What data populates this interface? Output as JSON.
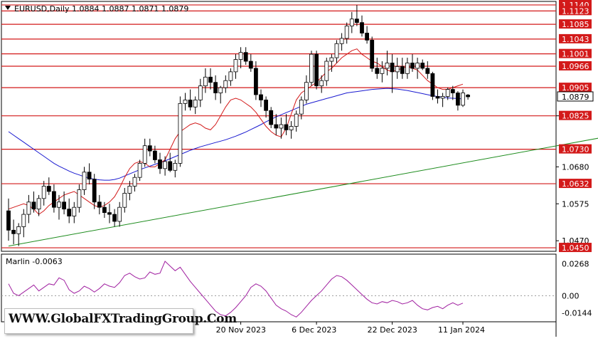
{
  "header": {
    "symbol_line": "EURUSD,Daily  1.0884 1.0887 1.0871 1.0879"
  },
  "indicator": {
    "label": "Marlin -0.0063",
    "axis_labels": [
      "0.0268",
      "0.00",
      "-0.0144"
    ]
  },
  "watermark": "WWW.GlobalFXTradingGroup.Com",
  "colors": {
    "background": "#ffffff",
    "panel_bg": "#f4f4f4",
    "level_line": "#d31a1a",
    "ma_fast": "#d31a1a",
    "ma_slow": "#1a1ad0",
    "trendline": "#1e8c1e",
    "oscillator": "#a020a0",
    "candle_up": "#ffffff",
    "candle_down": "#000000"
  },
  "chart_data": {
    "type": "candlestick",
    "symbol": "EURUSD",
    "timeframe": "Daily",
    "current_price": "1.0879",
    "ylim": [
      1.044,
      1.115
    ],
    "price_ticks": [
      "1.0825",
      "1.0680",
      "1.0575",
      "1.0470"
    ],
    "levels": [
      "1.1140",
      "1.1123",
      "1.1085",
      "1.1043",
      "1.1001",
      "1.0966",
      "1.0905",
      "1.0825",
      "1.0730",
      "1.0632",
      "1.0450"
    ],
    "x_labels": [
      "20 Nov 2023",
      "6 Dec 2023",
      "22 Dec 2023",
      "11 Jan 2024"
    ],
    "candles": [
      [
        1.0555,
        1.059,
        1.047,
        1.05
      ],
      [
        1.05,
        1.053,
        1.046,
        1.049
      ],
      [
        1.049,
        1.052,
        1.0455,
        1.051
      ],
      [
        1.051,
        1.056,
        1.048,
        1.0545
      ],
      [
        1.0545,
        1.06,
        1.052,
        1.058
      ],
      [
        1.058,
        1.061,
        1.055,
        1.056
      ],
      [
        1.056,
        1.06,
        1.054,
        1.059
      ],
      [
        1.059,
        1.064,
        1.057,
        1.0625
      ],
      [
        1.0625,
        1.065,
        1.06,
        1.061
      ],
      [
        1.061,
        1.063,
        1.055,
        1.0565
      ],
      [
        1.0565,
        1.06,
        1.053,
        1.058
      ],
      [
        1.058,
        1.061,
        1.0545,
        1.056
      ],
      [
        1.056,
        1.059,
        1.052,
        1.054
      ],
      [
        1.054,
        1.058,
        1.052,
        1.0565
      ],
      [
        1.0565,
        1.063,
        1.055,
        1.0615
      ],
      [
        1.0615,
        1.068,
        1.06,
        1.0665
      ],
      [
        1.0665,
        1.069,
        1.063,
        1.0645
      ],
      [
        1.0645,
        1.066,
        1.056,
        1.058
      ],
      [
        1.058,
        1.06,
        1.0545,
        1.0565
      ],
      [
        1.0565,
        1.058,
        1.0535,
        1.055
      ],
      [
        1.055,
        1.0575,
        1.052,
        1.0545
      ],
      [
        1.0545,
        1.056,
        1.051,
        1.0525
      ],
      [
        1.0525,
        1.058,
        1.051,
        1.0565
      ],
      [
        1.0565,
        1.062,
        1.055,
        1.0605
      ],
      [
        1.0605,
        1.064,
        1.0585,
        1.0625
      ],
      [
        1.0625,
        1.066,
        1.061,
        1.065
      ],
      [
        1.065,
        1.07,
        1.064,
        1.069
      ],
      [
        1.069,
        1.076,
        1.068,
        1.074
      ],
      [
        1.074,
        1.076,
        1.071,
        1.0725
      ],
      [
        1.0725,
        1.074,
        1.069,
        1.07
      ],
      [
        1.07,
        1.072,
        1.066,
        1.0675
      ],
      [
        1.0675,
        1.071,
        1.0655,
        1.0695
      ],
      [
        1.0695,
        1.072,
        1.0665,
        1.067
      ],
      [
        1.067,
        1.07,
        1.065,
        1.069
      ],
      [
        1.069,
        1.088,
        1.068,
        1.086
      ],
      [
        1.086,
        1.089,
        1.084,
        1.087
      ],
      [
        1.087,
        1.09,
        1.084,
        1.085
      ],
      [
        1.085,
        1.088,
        1.083,
        1.087
      ],
      [
        1.087,
        1.093,
        1.085,
        1.091
      ],
      [
        1.091,
        1.096,
        1.089,
        1.0935
      ],
      [
        1.0935,
        1.096,
        1.09,
        1.092
      ],
      [
        1.092,
        1.094,
        1.087,
        1.089
      ],
      [
        1.089,
        1.091,
        1.086,
        1.0905
      ],
      [
        1.0905,
        1.094,
        1.089,
        1.0925
      ],
      [
        1.0925,
        1.096,
        1.091,
        1.095
      ],
      [
        1.095,
        1.1,
        1.093,
        1.0985
      ],
      [
        1.0985,
        1.102,
        1.096,
        1.1005
      ],
      [
        1.1005,
        1.102,
        1.097,
        1.098
      ],
      [
        1.098,
        1.1,
        1.095,
        1.096
      ],
      [
        1.096,
        1.098,
        1.087,
        1.0885
      ],
      [
        1.0885,
        1.09,
        1.085,
        1.087
      ],
      [
        1.087,
        1.088,
        1.082,
        1.084
      ],
      [
        1.084,
        1.085,
        1.079,
        1.08
      ],
      [
        1.08,
        1.083,
        1.077,
        1.079
      ],
      [
        1.079,
        1.082,
        1.076,
        1.08
      ],
      [
        1.08,
        1.083,
        1.077,
        1.0785
      ],
      [
        1.0785,
        1.081,
        1.076,
        1.0795
      ],
      [
        1.0795,
        1.084,
        1.078,
        1.083
      ],
      [
        1.083,
        1.088,
        1.0815,
        1.087
      ],
      [
        1.087,
        1.094,
        1.086,
        1.092
      ],
      [
        1.092,
        1.101,
        1.091,
        1.1
      ],
      [
        1.1,
        1.101,
        1.09,
        1.091
      ],
      [
        1.091,
        1.094,
        1.089,
        1.0925
      ],
      [
        1.0925,
        1.099,
        1.091,
        1.098
      ],
      [
        1.098,
        1.1,
        1.095,
        1.099
      ],
      [
        1.099,
        1.104,
        1.0975,
        1.103
      ],
      [
        1.103,
        1.106,
        1.101,
        1.1045
      ],
      [
        1.1045,
        1.109,
        1.103,
        1.108
      ],
      [
        1.108,
        1.112,
        1.106,
        1.11
      ],
      [
        1.11,
        1.114,
        1.108,
        1.109
      ],
      [
        1.109,
        1.111,
        1.105,
        1.106
      ],
      [
        1.106,
        1.108,
        1.103,
        1.104
      ],
      [
        1.104,
        1.105,
        1.095,
        1.096
      ],
      [
        1.096,
        1.099,
        1.093,
        1.0945
      ],
      [
        1.0945,
        1.098,
        1.092,
        1.096
      ],
      [
        1.096,
        1.101,
        1.094,
        1.0975
      ],
      [
        1.0975,
        1.1,
        1.089,
        1.095
      ],
      [
        1.095,
        1.099,
        1.093,
        1.0965
      ],
      [
        1.0965,
        1.099,
        1.093,
        1.0945
      ],
      [
        1.0945,
        1.099,
        1.093,
        1.0975
      ],
      [
        1.0975,
        1.1,
        1.095,
        1.096
      ],
      [
        1.096,
        1.099,
        1.093,
        1.0975
      ],
      [
        1.0975,
        1.0985,
        1.0955,
        1.096
      ],
      [
        1.096,
        1.098,
        1.093,
        1.0945
      ],
      [
        1.0945,
        1.095,
        1.087,
        1.088
      ],
      [
        1.088,
        1.09,
        1.086,
        1.0875
      ],
      [
        1.0875,
        1.089,
        1.085,
        1.088
      ],
      [
        1.088,
        1.0905,
        1.087,
        1.09
      ],
      [
        1.09,
        1.091,
        1.087,
        1.089
      ],
      [
        1.089,
        1.0895,
        1.084,
        1.0855
      ],
      [
        1.0855,
        1.09,
        1.085,
        1.089
      ],
      [
        1.0884,
        1.0887,
        1.0871,
        1.0879
      ]
    ],
    "series": [
      {
        "values": [
          1.056,
          1.0565,
          1.057,
          1.0575,
          1.057,
          1.056,
          1.0545,
          1.0555,
          1.057,
          1.058,
          1.059,
          1.06,
          1.0605,
          1.061,
          1.06,
          1.059,
          1.058,
          1.057,
          1.0565,
          1.057,
          1.058,
          1.0595,
          1.062,
          1.065,
          1.0675,
          1.069,
          1.0695,
          1.069,
          1.068,
          1.068,
          1.069,
          1.07,
          1.073,
          1.076,
          1.078,
          1.079,
          1.08,
          1.0805,
          1.08,
          1.079,
          1.0785,
          1.08,
          1.0825,
          1.085,
          1.087,
          1.0875,
          1.087,
          1.086,
          1.085,
          1.0835,
          1.0815,
          1.0795,
          1.078,
          1.077,
          1.0765,
          1.079,
          1.083,
          1.087,
          1.089,
          1.09,
          1.091,
          1.092,
          1.0935,
          1.095,
          1.096,
          1.0975,
          1.099,
          1.1,
          1.101,
          1.1015,
          1.1,
          1.099,
          1.098,
          1.0975,
          1.0965,
          1.0955,
          1.095,
          1.0955,
          1.096,
          1.0965,
          1.096,
          1.0955,
          1.094,
          1.0925,
          1.0915,
          1.0905,
          1.09,
          1.09,
          1.0905,
          1.091,
          1.0915
        ]
      },
      {
        "values": [
          1.078,
          1.077,
          1.076,
          1.075,
          1.074,
          1.073,
          1.072,
          1.071,
          1.07,
          1.069,
          1.0682,
          1.0675,
          1.0668,
          1.0662,
          1.0657,
          1.0652,
          1.0648,
          1.0645,
          1.0643,
          1.0642,
          1.0642,
          1.0644,
          1.0648,
          1.0654,
          1.066,
          1.0666,
          1.0672,
          1.0677,
          1.0682,
          1.0687,
          1.0692,
          1.0697,
          1.0703,
          1.0709,
          1.0715,
          1.0721,
          1.0727,
          1.0732,
          1.0737,
          1.0741,
          1.0745,
          1.0749,
          1.0753,
          1.0757,
          1.0762,
          1.0767,
          1.0773,
          1.0779,
          1.0786,
          1.0793,
          1.08,
          1.0808,
          1.0815,
          1.0822,
          1.0828,
          1.0834,
          1.084,
          1.0846,
          1.0852,
          1.0858,
          1.0862,
          1.0866,
          1.087,
          1.0874,
          1.0878,
          1.0882,
          1.0886,
          1.089,
          1.0892,
          1.0894,
          1.0896,
          1.0898,
          1.09,
          1.0901,
          1.0902,
          1.0903,
          1.0902,
          1.0901,
          1.0899,
          1.0897,
          1.0894,
          1.0891,
          1.0888,
          1.0885,
          1.0882,
          1.088,
          1.0878,
          1.0876,
          1.0875,
          1.0874,
          1.0873
        ]
      }
    ],
    "trendline": [
      [
        0,
        1.0455
      ],
      [
        122,
        1.0775
      ]
    ],
    "oscillator": {
      "name": "Marlin",
      "value": -0.0063,
      "ylim": [
        -0.022,
        0.035
      ],
      "values": [
        0.01,
        0.002,
        0.0,
        0.003,
        0.006,
        0.009,
        0.004,
        0.007,
        0.01,
        0.009,
        0.015,
        0.013,
        0.005,
        0.002,
        0.004,
        0.008,
        0.006,
        0.003,
        0.006,
        0.01,
        0.008,
        0.007,
        0.011,
        0.017,
        0.019,
        0.016,
        0.014,
        0.015,
        0.02,
        0.018,
        0.019,
        0.029,
        0.025,
        0.021,
        0.024,
        0.018,
        0.012,
        0.007,
        0.002,
        -0.003,
        -0.008,
        -0.013,
        -0.016,
        -0.017,
        -0.014,
        -0.01,
        -0.005,
        0.0,
        0.007,
        0.01,
        0.008,
        0.004,
        -0.002,
        -0.008,
        -0.011,
        -0.013,
        -0.016,
        -0.018,
        -0.014,
        -0.009,
        -0.004,
        0.0,
        0.004,
        0.009,
        0.014,
        0.017,
        0.016,
        0.013,
        0.009,
        0.005,
        0.001,
        -0.003,
        -0.006,
        -0.007,
        -0.005,
        -0.006,
        -0.004,
        -0.005,
        -0.007,
        -0.006,
        -0.004,
        -0.008,
        -0.011,
        -0.012,
        -0.01,
        -0.009,
        -0.011,
        -0.008,
        -0.006,
        -0.008,
        -0.0063
      ]
    }
  }
}
